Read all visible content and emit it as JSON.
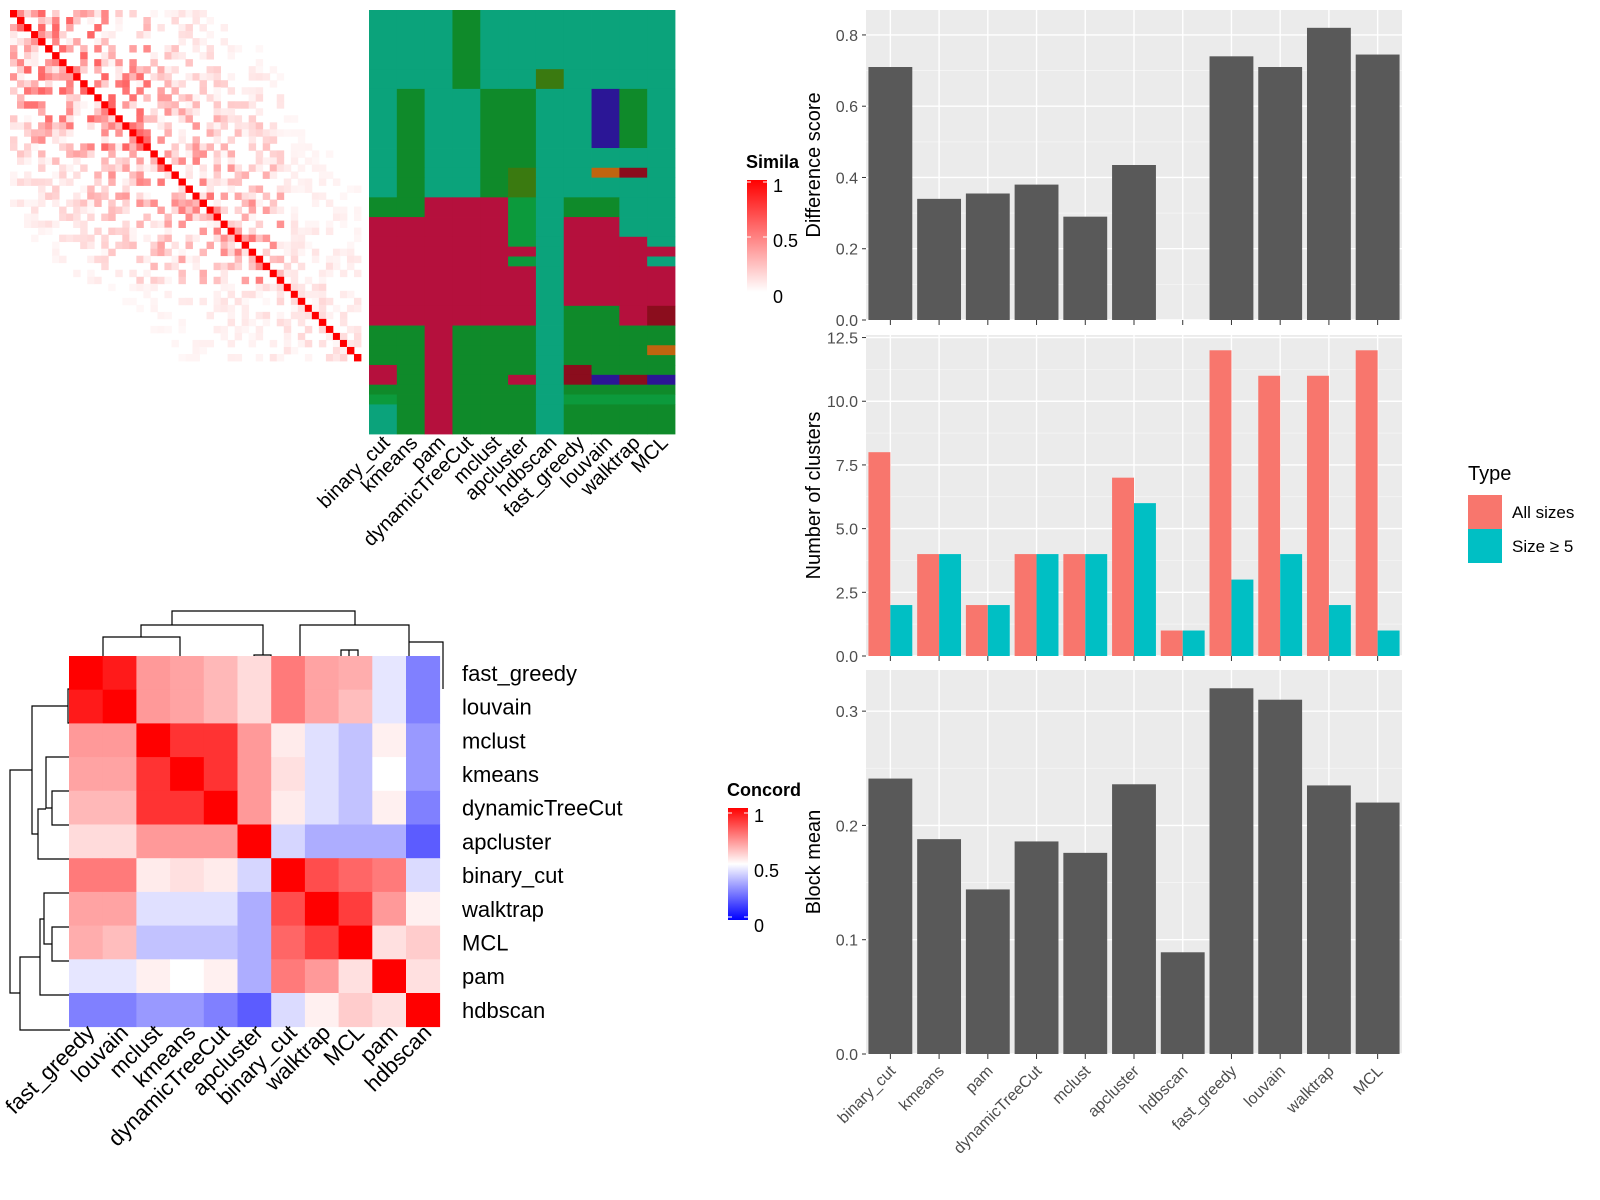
{
  "colors": {
    "bar": "#595959",
    "panel_bg": "#ebebeb",
    "grid_major": "#ffffff",
    "all_sizes": "#f8766d",
    "size_ge5": "#00bfc4",
    "sim_high": "#ff0000",
    "sim_low": "#ffffff",
    "conc_high": "#ff0000",
    "conc_mid": "#ffffff",
    "conc_low": "#0000ff",
    "cls_teal": "#0ba37b",
    "cls_green": "#0f8a2a",
    "cls_crimson": "#b5103d",
    "cls_olive": "#3a7a10",
    "cls_indigo": "#2b1696",
    "cls_orange": "#c0640f",
    "cls_darkred": "#8b0d1d",
    "cls_lightgreen": "#0c9a3c"
  },
  "similarity_panel": {
    "legend_title": "Simila",
    "legend_ticks": [
      "1",
      "0.5",
      "0"
    ],
    "n": 50
  },
  "membership_panel": {
    "methods": [
      "binary_cut",
      "kmeans",
      "pam",
      "dynamicTreeCut",
      "mclust",
      "apcluster",
      "hdbscan",
      "fast_greedy",
      "louvain",
      "walktrap",
      "MCL"
    ]
  },
  "concordance_panel": {
    "legend_title": "Concord",
    "legend_ticks": [
      "1",
      "0.5",
      "0"
    ],
    "order": [
      "fast_greedy",
      "louvain",
      "mclust",
      "kmeans",
      "dynamicTreeCut",
      "apcluster",
      "binary_cut",
      "walktrap",
      "MCL",
      "pam",
      "hdbscan"
    ],
    "matrix": [
      [
        1.0,
        0.95,
        0.7,
        0.68,
        0.64,
        0.57,
        0.76,
        0.68,
        0.66,
        0.45,
        0.25
      ],
      [
        0.95,
        1.0,
        0.7,
        0.68,
        0.64,
        0.57,
        0.76,
        0.68,
        0.63,
        0.45,
        0.25
      ],
      [
        0.7,
        0.7,
        1.0,
        0.9,
        0.9,
        0.7,
        0.54,
        0.44,
        0.38,
        0.53,
        0.3
      ],
      [
        0.68,
        0.68,
        0.9,
        1.0,
        0.9,
        0.7,
        0.56,
        0.44,
        0.38,
        0.5,
        0.3
      ],
      [
        0.64,
        0.64,
        0.9,
        0.9,
        1.0,
        0.7,
        0.54,
        0.44,
        0.38,
        0.53,
        0.25
      ],
      [
        0.57,
        0.57,
        0.7,
        0.7,
        0.7,
        1.0,
        0.42,
        0.34,
        0.34,
        0.34,
        0.18
      ],
      [
        0.76,
        0.76,
        0.54,
        0.56,
        0.54,
        0.42,
        1.0,
        0.85,
        0.8,
        0.76,
        0.43
      ],
      [
        0.68,
        0.68,
        0.44,
        0.44,
        0.44,
        0.34,
        0.85,
        1.0,
        0.88,
        0.7,
        0.53
      ],
      [
        0.66,
        0.63,
        0.38,
        0.38,
        0.38,
        0.34,
        0.8,
        0.88,
        1.0,
        0.56,
        0.6
      ],
      [
        0.45,
        0.45,
        0.53,
        0.5,
        0.53,
        0.34,
        0.76,
        0.7,
        0.56,
        1.0,
        0.56
      ],
      [
        0.25,
        0.25,
        0.3,
        0.3,
        0.25,
        0.18,
        0.43,
        0.53,
        0.6,
        0.56,
        1.0
      ]
    ]
  },
  "chart_data": [
    {
      "type": "bar",
      "categories": [
        "binary_cut",
        "kmeans",
        "pam",
        "dynamicTreeCut",
        "mclust",
        "apcluster",
        "hdbscan",
        "fast_greedy",
        "louvain",
        "walktrap",
        "MCL"
      ],
      "values": [
        0.71,
        0.34,
        0.355,
        0.38,
        0.29,
        0.435,
        null,
        0.74,
        0.71,
        0.82,
        0.745
      ],
      "ylabel": "Difference score",
      "ylim": [
        0,
        0.87
      ],
      "yticks": [
        "0.0",
        "0.2",
        "0.4",
        "0.6",
        "0.8"
      ],
      "grid": true
    },
    {
      "type": "bar",
      "categories": [
        "binary_cut",
        "kmeans",
        "pam",
        "dynamicTreeCut",
        "mclust",
        "apcluster",
        "hdbscan",
        "fast_greedy",
        "louvain",
        "walktrap",
        "MCL"
      ],
      "series": [
        {
          "name": "All sizes",
          "values": [
            8,
            4,
            2,
            4,
            4,
            7,
            1,
            12,
            11,
            11,
            12
          ]
        },
        {
          "name": "Size ≥ 5",
          "values": [
            2,
            4,
            2,
            4,
            4,
            6,
            1,
            3,
            4,
            2,
            1
          ]
        }
      ],
      "ylabel": "Number of clusters",
      "ylim": [
        0,
        12.6
      ],
      "yticks": [
        "0.0",
        "2.5",
        "5.0",
        "7.5",
        "10.0",
        "12.5"
      ],
      "legend_title": "Type",
      "legend_position": "right",
      "grid": true
    },
    {
      "type": "bar",
      "categories": [
        "binary_cut",
        "kmeans",
        "pam",
        "dynamicTreeCut",
        "mclust",
        "apcluster",
        "hdbscan",
        "fast_greedy",
        "louvain",
        "walktrap",
        "MCL"
      ],
      "values": [
        0.241,
        0.188,
        0.144,
        0.186,
        0.176,
        0.236,
        0.089,
        0.32,
        0.31,
        0.235,
        0.22
      ],
      "ylabel": "Block mean",
      "ylim": [
        0,
        0.336
      ],
      "yticks": [
        "0.0",
        "0.1",
        "0.2",
        "0.3"
      ],
      "grid": true
    }
  ]
}
